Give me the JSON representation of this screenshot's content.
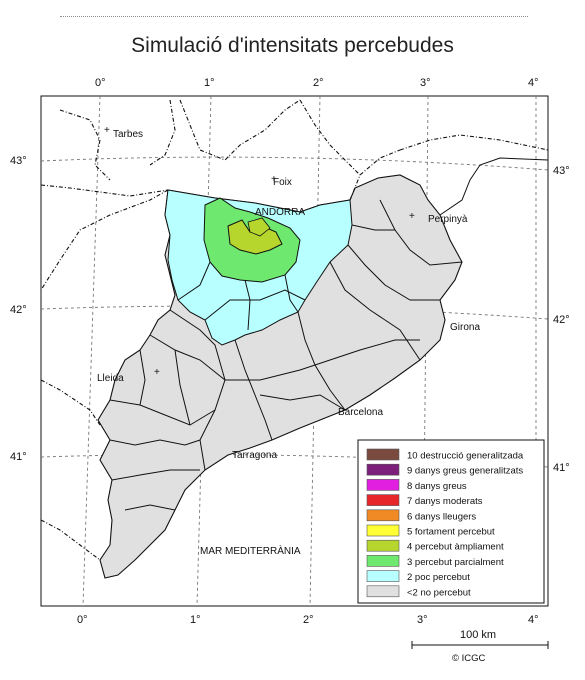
{
  "title": "Simulació d'intensitats percebudes",
  "axes": {
    "top": [
      "0°",
      "1°",
      "2°",
      "3°",
      "4°"
    ],
    "bottom": [
      "0°",
      "1°",
      "2°",
      "3°",
      "4°"
    ],
    "left": [
      "43°",
      "42°",
      "41°"
    ],
    "right": [
      "43°",
      "42°",
      "41°"
    ]
  },
  "places": {
    "tarbes": "Tarbes",
    "foix": "Foix",
    "andorra": "ANDORRA",
    "perpinya": "Perpinyà",
    "girona": "Girona",
    "lleida": "Lleida",
    "barcelona": "Barcelona",
    "tarragona": "Tarragona",
    "sea": "MAR MEDITERRÀNIA"
  },
  "legend": [
    {
      "label": "10 destrucció generalitzada",
      "color": "#7b4a3f"
    },
    {
      "label": "9 danys greus generalitzats",
      "color": "#7b1f7b"
    },
    {
      "label": "8 danys greus",
      "color": "#e11fe1"
    },
    {
      "label": "7 danys moderats",
      "color": "#e6262b"
    },
    {
      "label": "6 danys lleugers",
      "color": "#f08a24"
    },
    {
      "label": "5 fortament percebut",
      "color": "#ffff33"
    },
    {
      "label": "4 percebut àmpliament",
      "color": "#b6d62e"
    },
    {
      "label": "3 percebut parcialment",
      "color": "#6ee86e"
    },
    {
      "label": "2 poc percebut",
      "color": "#b8ffff"
    },
    {
      "label": "<2 no percebut",
      "color": "#e0e0e0"
    }
  ],
  "scale_label": "100 km",
  "credit": "© ICGC"
}
